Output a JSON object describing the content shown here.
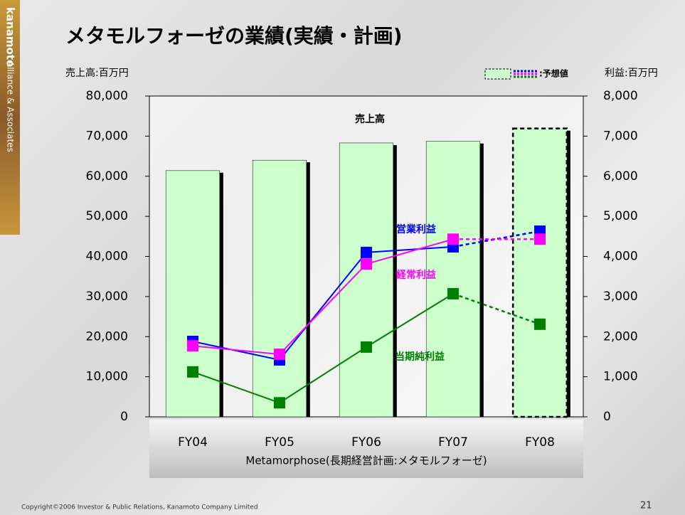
{
  "chart_data": {
    "type": "combo",
    "title": "メタモルフォーゼの業績(実績・計画)",
    "y_label": "売上高:百万円",
    "y2_label": "利益:百万円",
    "x_label": "Metamorphose(長期経営計画:メタモルフォーゼ)",
    "legend_label": ":予想値",
    "categories": [
      "FY04",
      "FY05",
      "FY06",
      "FY07",
      "FY08"
    ],
    "forecast": [
      false,
      false,
      false,
      false,
      true
    ],
    "series": [
      {
        "name": "売上高",
        "type": "bar",
        "axis": "y",
        "color": "#ccffcc",
        "values": [
          61400,
          64000,
          68300,
          68700,
          71900
        ]
      },
      {
        "name": "営業利益",
        "type": "line",
        "axis": "y2",
        "color": "#0000ff",
        "values": [
          1880,
          1420,
          4100,
          4240,
          4630
        ]
      },
      {
        "name": "経常利益",
        "type": "line",
        "axis": "y2",
        "color": "#ff00ff",
        "values": [
          1770,
          1560,
          3810,
          4430,
          4430
        ]
      },
      {
        "name": "当期純利益",
        "type": "line",
        "axis": "y2",
        "color": "#008000",
        "values": [
          1120,
          350,
          1740,
          3070,
          2310
        ]
      }
    ],
    "ylim": [
      0,
      80000
    ],
    "yticks": [
      0,
      {
        "value": 10000,
        "label": "10,000"
      },
      {
        "value": 20000,
        "label": "20,000"
      },
      {
        "value": 30000,
        "label": "30,000"
      },
      {
        "value": 40000,
        "label": "40,000"
      },
      {
        "value": 50000,
        "label": "50,000"
      },
      {
        "value": 60000,
        "label": "60,000"
      },
      {
        "value": 70000,
        "label": "70,000"
      },
      {
        "value": 80000,
        "label": "80,000"
      }
    ],
    "y2lim": [
      0,
      8000
    ],
    "y2ticks": [
      0,
      {
        "value": 1000,
        "label": "1,000"
      },
      {
        "value": 2000,
        "label": "2,000"
      },
      {
        "value": 3000,
        "label": "3,000"
      },
      {
        "value": 4000,
        "label": "4,000"
      },
      {
        "value": 5000,
        "label": "5,000"
      },
      {
        "value": 6000,
        "label": "6,000"
      },
      {
        "value": 7000,
        "label": "7,000"
      },
      {
        "value": 8000,
        "label": "8,000"
      }
    ]
  },
  "side_logo": {
    "brand": "kanamoto",
    "tagline": "Alliance & Associates"
  },
  "footer": {
    "copyright": "Copyright©2006 Investor & Public Relations, Kanamoto Company Limited",
    "page": "21"
  }
}
